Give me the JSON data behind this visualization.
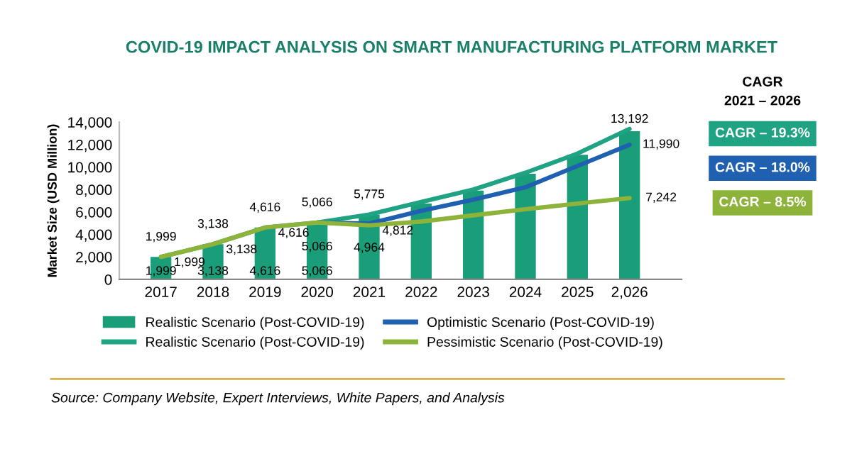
{
  "chart_data": {
    "type": "bar",
    "title": "COVID-19 IMPACT ANALYSIS ON SMART MANUFACTURING PLATFORM MARKET",
    "ylabel": "Market Size (USD Million)",
    "categories": [
      "2017",
      "2018",
      "2019",
      "2020",
      "2021",
      "2022",
      "2023",
      "2024",
      "2025",
      "2,026"
    ],
    "series": [
      {
        "name": "Realistic Scenario (Post-COVID-19)",
        "color": "#1a9e7a",
        "values": [
          1999,
          3138,
          4616,
          5066,
          5775,
          6750,
          7900,
          9400,
          11100,
          13192
        ],
        "value_labels": [
          "1,999",
          "3,138",
          "4,616",
          "5,066",
          null,
          null,
          null,
          null,
          null,
          "13,192"
        ]
      },
      {
        "name": "Realistic Scenario (Post-COVID-19)",
        "type": "line",
        "color": "#1fa383",
        "values": [
          1999,
          3138,
          4616,
          5066,
          5775,
          6900,
          8000,
          9500,
          11200,
          13400
        ],
        "value_labels": [
          "1,999",
          "3,138",
          "4,616",
          "5,066",
          "5,775",
          null,
          null,
          null,
          null,
          null
        ]
      },
      {
        "name": "Optimistic Scenario (Post-COVID-19)",
        "type": "line",
        "color": "#2060b0",
        "values": [
          null,
          null,
          null,
          5066,
          4964,
          6100,
          7100,
          8200,
          10100,
          11990
        ],
        "value_labels": [
          null,
          null,
          null,
          "5,066",
          "4,964",
          null,
          null,
          null,
          null,
          "11,990"
        ]
      },
      {
        "name": "Pessimistic Scenario (Post-COVID-19)",
        "type": "line",
        "color": "#8db33a",
        "values": [
          1999,
          3138,
          4616,
          5066,
          4812,
          5150,
          5700,
          6250,
          6750,
          7242
        ],
        "value_labels": [
          "1,999",
          "3,138",
          "4,616",
          null,
          "4,812",
          null,
          null,
          null,
          null,
          "7,242"
        ]
      }
    ],
    "ylim": [
      0,
      14000
    ],
    "yticks": [
      {
        "value": 0,
        "label": "0"
      },
      {
        "value": 2000,
        "label": "2,000"
      },
      {
        "value": 4000,
        "label": "4,000"
      },
      {
        "value": 6000,
        "label": "6,000"
      },
      {
        "value": 8000,
        "label": "8,000"
      },
      {
        "value": 10000,
        "label": "10,000"
      },
      {
        "value": 12000,
        "label": "12,000"
      },
      {
        "value": 14000,
        "label": "14,000"
      }
    ],
    "grid": false,
    "legend": "bottom",
    "annotations": [
      "CAGR\n2021 – 2026",
      "CAGR – 19.3%",
      "CAGR – 18.0%",
      "CAGR – 8.5%",
      "Source: Company Website, Expert Interviews, White Papers, and Analysis"
    ]
  }
}
